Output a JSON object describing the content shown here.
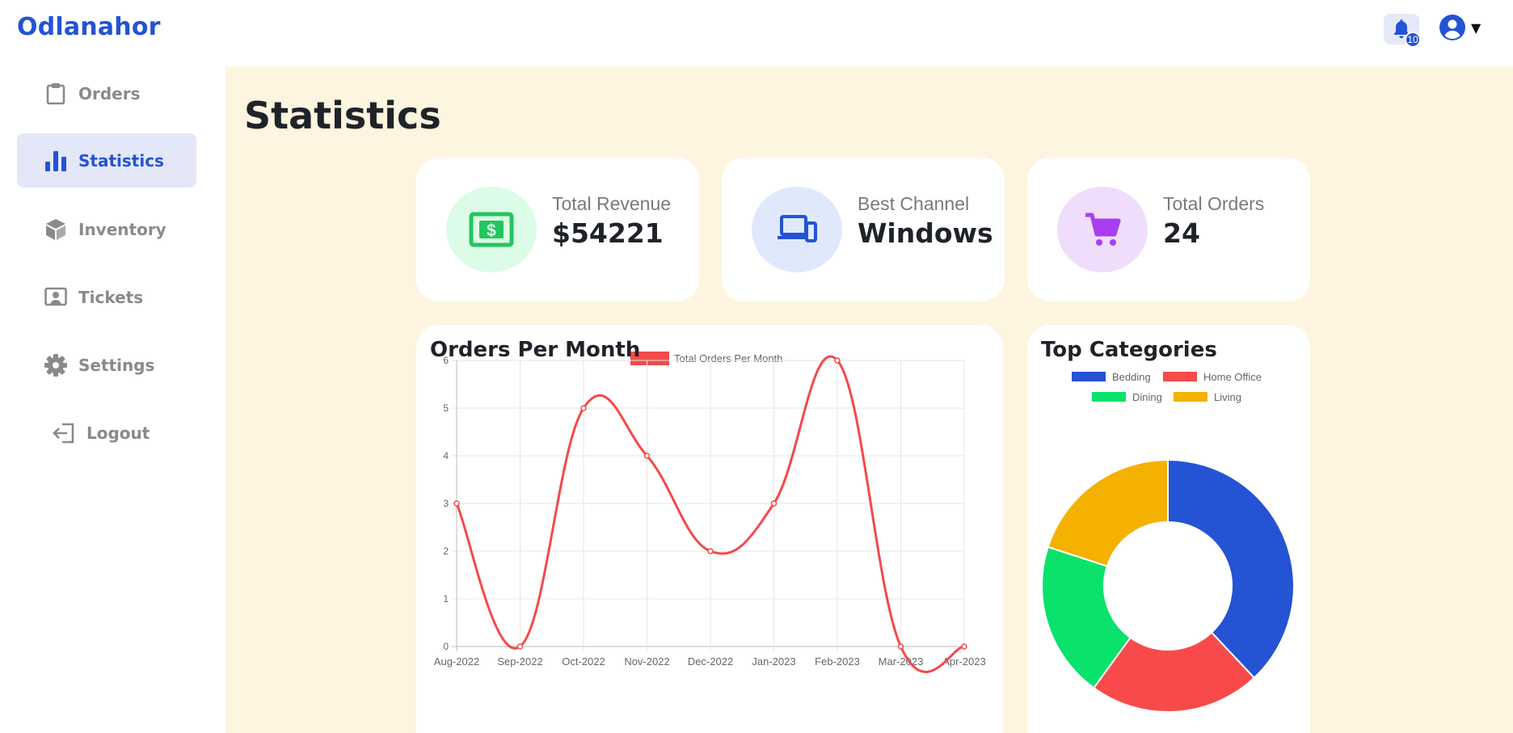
{
  "brand": "Odlanahor",
  "header": {
    "notifications_count": "10",
    "bell_icon": "bell-icon",
    "user_icon": "user-circle-icon",
    "caret": "▼"
  },
  "sidebar": {
    "items": [
      {
        "label": "Orders",
        "icon": "clipboard-icon",
        "active": false
      },
      {
        "label": "Statistics",
        "icon": "bar-chart-icon",
        "active": true
      },
      {
        "label": "Inventory",
        "icon": "box-icon",
        "active": false
      },
      {
        "label": "Tickets",
        "icon": "ticket-icon",
        "active": false
      },
      {
        "label": "Settings",
        "icon": "gear-icon",
        "active": false
      },
      {
        "label": "Logout",
        "icon": "logout-icon",
        "active": false
      }
    ]
  },
  "page": {
    "title": "Statistics"
  },
  "stats": [
    {
      "label": "Total Revenue",
      "value": "$54221",
      "icon": "money-icon",
      "color": "#22c55e",
      "bg": "#dcfce7"
    },
    {
      "label": "Best Channel",
      "value": "Windows",
      "icon": "devices-icon",
      "color": "#2453d3",
      "bg": "#e0e9fb"
    },
    {
      "label": "Total Orders",
      "value": "24",
      "icon": "cart-icon",
      "color": "#a83ef0",
      "bg": "#f0ddfb"
    }
  ],
  "orders_panel": {
    "title": "Orders Per Month"
  },
  "categories_panel": {
    "title": "Top Categories"
  },
  "chart_data": [
    {
      "type": "line",
      "legend": [
        "Total Orders Per Month"
      ],
      "x": [
        "Aug-2022",
        "Sep-2022",
        "Oct-2022",
        "Nov-2022",
        "Dec-2022",
        "Jan-2023",
        "Feb-2023",
        "Mar-2023",
        "Apr-2023"
      ],
      "series": [
        {
          "name": "Total Orders Per Month",
          "values": [
            3,
            0,
            5,
            4,
            2,
            3,
            6,
            0,
            0
          ],
          "color": "#f34a4a"
        }
      ],
      "ylim": [
        0,
        6
      ],
      "yticks": [
        "0",
        "1",
        "2",
        "3",
        "4",
        "5",
        "6"
      ],
      "grid": true,
      "legend_position": "top"
    },
    {
      "type": "pie",
      "legend": [
        "Bedding",
        "Home Office",
        "Dining",
        "Living"
      ],
      "values": [
        38,
        22,
        20,
        20
      ],
      "colors": [
        "#2453d3",
        "#f84a4a",
        "#0ae26c",
        "#f4b100"
      ],
      "donut": true,
      "legend_position": "top"
    }
  ]
}
